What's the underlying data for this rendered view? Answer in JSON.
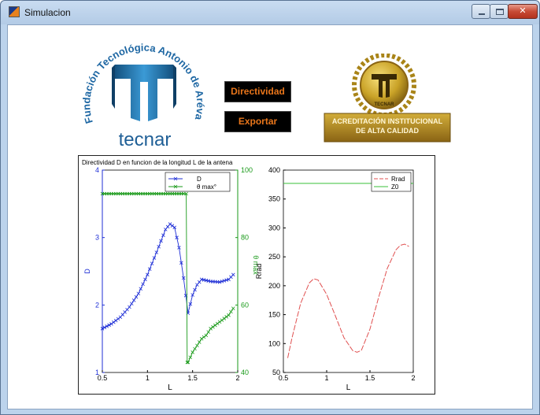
{
  "window": {
    "title": "Simulacion"
  },
  "logo_left": {
    "arc_text": "Fundación Tecnológica Antonio de Arévalo",
    "name": "tecnar"
  },
  "logo_right": {
    "seal_text": "TECNAR",
    "banner_line1": "ACREDITACIÓN INSTITUCIONAL",
    "banner_line2": "DE ALTA CALIDAD"
  },
  "buttons": {
    "directividad": "Directividad",
    "exportar": "Exportar"
  },
  "colors": {
    "button_bg": "#000000",
    "button_text": "#e8751a",
    "logo_blue": "#1f6fa8",
    "seal_gold": "#c9a227",
    "series_blue": "#1f2fd6",
    "series_green": "#1a9a1a",
    "series_red": "#e05050",
    "z0_green": "#39c039"
  },
  "chart_data": [
    {
      "type": "line",
      "title": "Directividad D en funcion de la longitud L de la antena",
      "xlabel": "L",
      "ylabel": "D",
      "ylabel_right": "θ max",
      "xlim": [
        0.5,
        2
      ],
      "ylim": [
        1,
        4
      ],
      "ylim_right": [
        40,
        100
      ],
      "xticks": [
        "0.5",
        "1",
        "1.5",
        "2"
      ],
      "yticks": [
        "1",
        "2",
        "3",
        "4"
      ],
      "yticks_right": [
        "40",
        "60",
        "80",
        "100"
      ],
      "legend": [
        "D",
        "θ max°"
      ],
      "series": [
        {
          "name": "D",
          "axis": "left",
          "marker": "x",
          "x": [
            0.5,
            0.6,
            0.7,
            0.8,
            0.9,
            1.0,
            1.1,
            1.2,
            1.25,
            1.3,
            1.35,
            1.4,
            1.45,
            1.5,
            1.55,
            1.6,
            1.7,
            1.8,
            1.9,
            1.95
          ],
          "y": [
            1.65,
            1.72,
            1.82,
            1.97,
            2.17,
            2.45,
            2.78,
            3.12,
            3.2,
            3.15,
            2.85,
            2.4,
            1.88,
            2.15,
            2.3,
            2.38,
            2.35,
            2.34,
            2.38,
            2.45
          ]
        },
        {
          "name": "θ max°",
          "axis": "right",
          "marker": "x",
          "x": [
            0.5,
            0.6,
            0.7,
            0.8,
            0.9,
            1.0,
            1.1,
            1.2,
            1.3,
            1.4,
            1.43,
            1.44,
            1.45,
            1.5,
            1.55,
            1.6,
            1.65,
            1.7,
            1.75,
            1.8,
            1.85,
            1.9,
            1.95
          ],
          "y": [
            93,
            93,
            93,
            93,
            93,
            93,
            93,
            93,
            93,
            93,
            93,
            43,
            43,
            46,
            48,
            50,
            51,
            53,
            54,
            55,
            56,
            57,
            59
          ]
        }
      ]
    },
    {
      "type": "line",
      "title": "",
      "xlabel": "L",
      "ylabel": "Rrad",
      "xlim": [
        0.5,
        2
      ],
      "ylim": [
        50,
        400
      ],
      "xticks": [
        "0.5",
        "1",
        "1.5",
        "2"
      ],
      "yticks": [
        "50",
        "100",
        "150",
        "200",
        "250",
        "300",
        "350",
        "400"
      ],
      "legend": [
        "Rrad",
        "Z0"
      ],
      "series": [
        {
          "name": "Rrad",
          "x": [
            0.55,
            0.6,
            0.7,
            0.8,
            0.85,
            0.9,
            1.0,
            1.1,
            1.2,
            1.3,
            1.35,
            1.4,
            1.5,
            1.6,
            1.7,
            1.8,
            1.85,
            1.9,
            1.95
          ],
          "y": [
            75,
            110,
            170,
            205,
            212,
            210,
            185,
            148,
            110,
            88,
            85,
            88,
            125,
            180,
            230,
            262,
            270,
            272,
            268
          ]
        },
        {
          "name": "Z0",
          "x": [
            0.5,
            2
          ],
          "y": [
            377,
            377
          ]
        }
      ]
    }
  ]
}
